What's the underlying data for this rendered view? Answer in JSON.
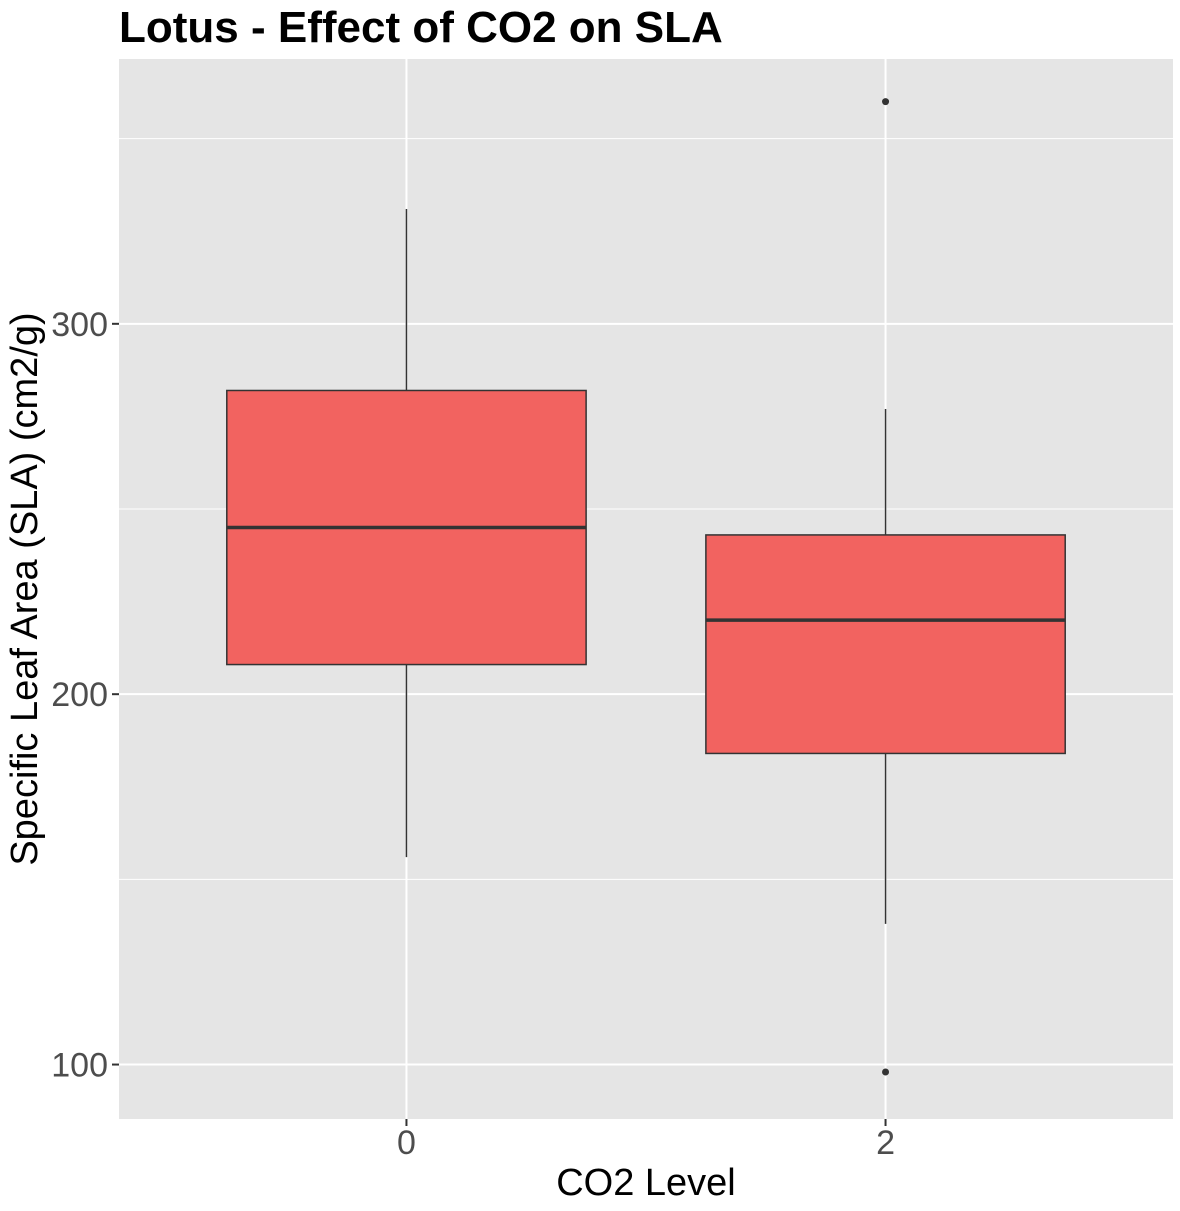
{
  "chart_data": {
    "type": "boxplot",
    "title": "Lotus - Effect of CO2 on SLA",
    "xlabel": "CO2 Level",
    "ylabel": "Specific Leaf Area (SLA) (cm2/g)",
    "categories": [
      "0",
      "2"
    ],
    "boxes": [
      {
        "category": "0",
        "whisker_low": 156,
        "q1": 208,
        "median": 245,
        "q3": 282,
        "whisker_high": 331,
        "outliers": []
      },
      {
        "category": "2",
        "whisker_low": 138,
        "q1": 184,
        "median": 220,
        "q3": 243,
        "whisker_high": 277,
        "outliers": [
          360,
          98
        ]
      }
    ],
    "y_ticks": [
      100,
      200,
      300
    ],
    "ylim": [
      85.3,
      371.5
    ],
    "grid": true,
    "legend": "none",
    "colors": {
      "fill": "#F26360",
      "stroke": "#333333",
      "panel": "#E5E5E5",
      "grid": "#FFFFFF"
    }
  }
}
